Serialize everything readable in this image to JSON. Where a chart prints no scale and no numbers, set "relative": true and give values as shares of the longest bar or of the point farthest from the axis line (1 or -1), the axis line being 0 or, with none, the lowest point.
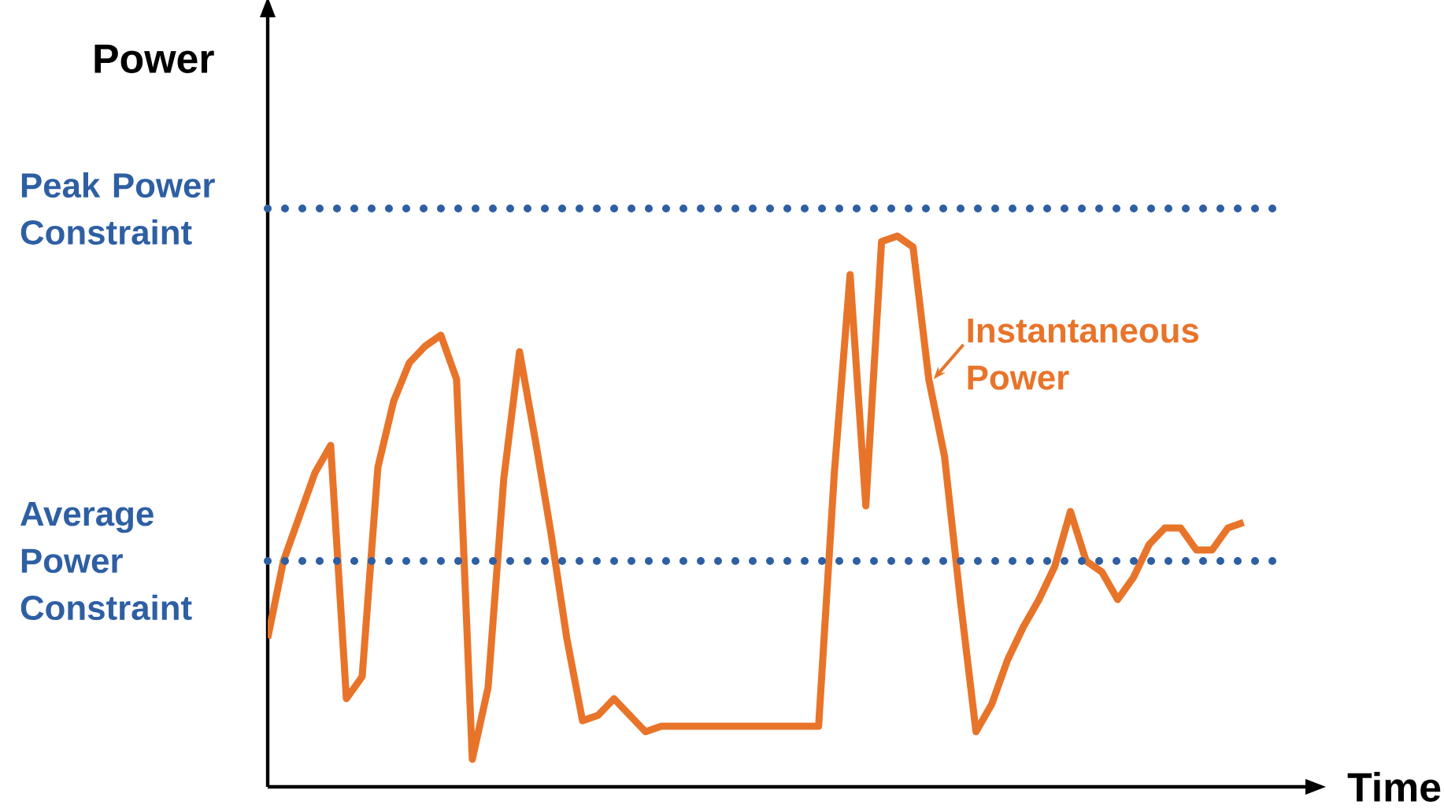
{
  "chart_data": {
    "type": "line",
    "relative": true,
    "xlabel": "Time",
    "ylabel": "Power",
    "categories": [
      null,
      null,
      null,
      null,
      null,
      null,
      null,
      null,
      null,
      null,
      null,
      null,
      null,
      null,
      null,
      null,
      null,
      null,
      null,
      null,
      null,
      null,
      null,
      null,
      null,
      null,
      null,
      null,
      null,
      null,
      null,
      null,
      null,
      null,
      null,
      null,
      null,
      null,
      null,
      null,
      null,
      null,
      null,
      null,
      null,
      null,
      null,
      null,
      null,
      null,
      null,
      null,
      null,
      null,
      null,
      null,
      null,
      null,
      null,
      null,
      null,
      null,
      null
    ],
    "series": [
      {
        "color": "#e8742a",
        "values": [
          0.27,
          0.41,
          0.49,
          0.57,
          0.62,
          0.16,
          0.2,
          0.58,
          0.7,
          0.77,
          0.8,
          0.82,
          0.74,
          0.05,
          0.18,
          0.56,
          0.79,
          0.63,
          0.46,
          0.27,
          0.12,
          0.13,
          0.16,
          0.13,
          0.1,
          0.11,
          0.11,
          0.11,
          0.11,
          0.11,
          0.11,
          0.11,
          0.11,
          0.11,
          0.11,
          0.11,
          0.57,
          0.93,
          0.51,
          0.99,
          1,
          0.98,
          0.74,
          0.6,
          0.34,
          0.1,
          0.15,
          0.23,
          0.29,
          0.34,
          0.4,
          0.5,
          0.41,
          0.39,
          0.34,
          0.38,
          0.44,
          0.47,
          0.47,
          0.43,
          0.43,
          0.47,
          0.48
        ]
      }
    ],
    "ref_lines": [
      {
        "axis": "y",
        "value": 1.05,
        "label": "Peak Power Constraint",
        "color": "#2e5fa3",
        "line_style": "dotted"
      },
      {
        "axis": "y",
        "value": 0.41,
        "label": "Average Power Constraint",
        "color": "#2e5fa3",
        "line_style": "dotted"
      }
    ],
    "annotations": [
      "Instantaneous Power"
    ]
  }
}
